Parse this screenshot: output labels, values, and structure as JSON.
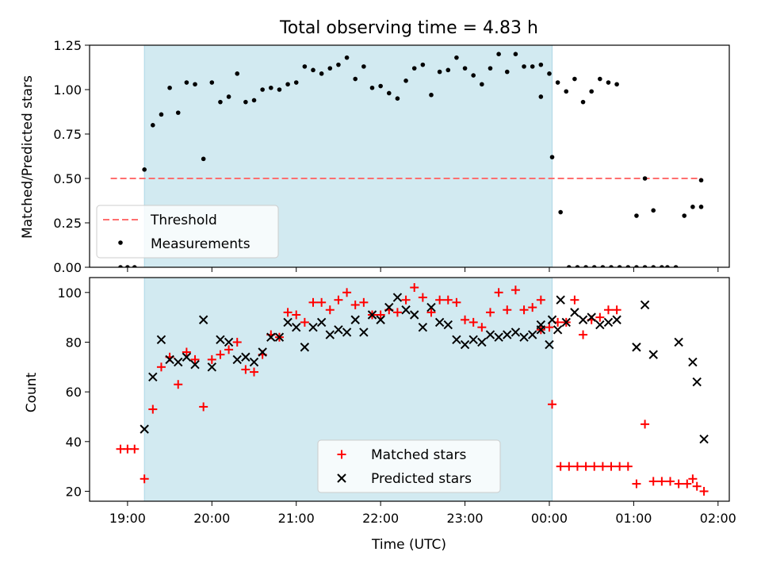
{
  "chart_data": [
    {
      "type": "scatter",
      "title": "Total observing time = 4.83 h",
      "xlabel": "",
      "ylabel": "Matched/Predicted stars",
      "ylim": [
        0,
        1.25
      ],
      "yticks": [
        "0.00",
        "0.25",
        "0.50",
        "0.75",
        "1.00",
        "1.25"
      ],
      "xlim": [
        "18:33",
        "02:08"
      ],
      "grid": false,
      "legend_position": "lower-left",
      "shaded_interval": {
        "start": "19:12",
        "end": "00:02",
        "color": "#add8e6"
      },
      "threshold": {
        "name": "Threshold",
        "value": 0.5,
        "x_start": "18:48",
        "x_end": "01:48",
        "color": "#ff6f6f",
        "style": "dashed"
      },
      "series": [
        {
          "name": "Measurements",
          "marker": "dot",
          "color": "#000000",
          "points": [
            [
              "18:55",
              0.0
            ],
            [
              "19:00",
              0.0
            ],
            [
              "19:05",
              0.0
            ],
            [
              "19:12",
              0.55
            ],
            [
              "19:18",
              0.8
            ],
            [
              "19:24",
              0.86
            ],
            [
              "19:30",
              1.01
            ],
            [
              "19:36",
              0.87
            ],
            [
              "19:42",
              1.04
            ],
            [
              "19:48",
              1.03
            ],
            [
              "19:54",
              0.61
            ],
            [
              "20:00",
              1.04
            ],
            [
              "20:06",
              0.93
            ],
            [
              "20:12",
              0.96
            ],
            [
              "20:18",
              1.09
            ],
            [
              "20:24",
              0.93
            ],
            [
              "20:30",
              0.94
            ],
            [
              "20:36",
              1.0
            ],
            [
              "20:42",
              1.01
            ],
            [
              "20:48",
              1.0
            ],
            [
              "20:54",
              1.03
            ],
            [
              "21:00",
              1.04
            ],
            [
              "21:06",
              1.13
            ],
            [
              "21:12",
              1.11
            ],
            [
              "21:18",
              1.09
            ],
            [
              "21:24",
              1.12
            ],
            [
              "21:30",
              1.14
            ],
            [
              "21:36",
              1.18
            ],
            [
              "21:42",
              1.06
            ],
            [
              "21:48",
              1.13
            ],
            [
              "21:54",
              1.01
            ],
            [
              "22:00",
              1.02
            ],
            [
              "22:06",
              0.98
            ],
            [
              "22:12",
              0.95
            ],
            [
              "22:18",
              1.05
            ],
            [
              "22:24",
              1.12
            ],
            [
              "22:30",
              1.14
            ],
            [
              "22:36",
              0.97
            ],
            [
              "22:42",
              1.1
            ],
            [
              "22:48",
              1.11
            ],
            [
              "22:54",
              1.18
            ],
            [
              "23:00",
              1.12
            ],
            [
              "23:06",
              1.08
            ],
            [
              "23:12",
              1.03
            ],
            [
              "23:18",
              1.12
            ],
            [
              "23:24",
              1.2
            ],
            [
              "23:30",
              1.1
            ],
            [
              "23:36",
              1.2
            ],
            [
              "23:42",
              1.13
            ],
            [
              "23:48",
              1.13
            ],
            [
              "23:54",
              1.14
            ],
            [
              "00:00",
              1.09
            ],
            [
              "00:06",
              1.04
            ],
            [
              "00:12",
              0.99
            ],
            [
              "00:18",
              1.06
            ],
            [
              "00:24",
              0.93
            ],
            [
              "00:30",
              0.99
            ],
            [
              "00:36",
              1.06
            ],
            [
              "00:42",
              1.04
            ],
            [
              "00:48",
              1.03
            ],
            [
              "23:54",
              0.96
            ],
            [
              "00:02",
              0.62
            ],
            [
              "00:08",
              0.31
            ],
            [
              "00:14",
              0.0
            ],
            [
              "00:20",
              0.0
            ],
            [
              "00:26",
              0.0
            ],
            [
              "00:32",
              0.0
            ],
            [
              "00:38",
              0.0
            ],
            [
              "00:44",
              0.0
            ],
            [
              "00:50",
              0.0
            ],
            [
              "00:56",
              0.0
            ],
            [
              "01:02",
              0.0
            ],
            [
              "01:08",
              0.0
            ],
            [
              "01:14",
              0.0
            ],
            [
              "01:20",
              0.0
            ],
            [
              "01:02",
              0.29
            ],
            [
              "01:08",
              0.5
            ],
            [
              "01:14",
              0.32
            ],
            [
              "01:24",
              0.0
            ],
            [
              "01:30",
              0.0
            ],
            [
              "01:36",
              0.29
            ],
            [
              "01:42",
              0.34
            ],
            [
              "01:48",
              0.34
            ],
            [
              "01:48",
              0.49
            ]
          ]
        }
      ]
    },
    {
      "type": "scatter",
      "title": "",
      "xlabel": "Time (UTC)",
      "ylabel": "Count",
      "ylim": [
        16,
        106
      ],
      "yticks": [
        "20",
        "40",
        "60",
        "80",
        "100"
      ],
      "xlim": [
        "18:33",
        "02:08"
      ],
      "xticks": [
        "19:00",
        "20:00",
        "21:00",
        "22:00",
        "23:00",
        "00:00",
        "01:00",
        "02:00"
      ],
      "grid": false,
      "legend_position": "lower-center",
      "shaded_interval": {
        "start": "19:12",
        "end": "00:02",
        "color": "#add8e6"
      },
      "series": [
        {
          "name": "Matched stars",
          "marker": "plus",
          "color": "#ff0000",
          "points": [
            [
              "18:55",
              37
            ],
            [
              "19:00",
              37
            ],
            [
              "19:05",
              37
            ],
            [
              "19:12",
              25
            ],
            [
              "19:18",
              53
            ],
            [
              "19:24",
              70
            ],
            [
              "19:30",
              74
            ],
            [
              "19:36",
              63
            ],
            [
              "19:42",
              76
            ],
            [
              "19:48",
              73
            ],
            [
              "19:54",
              54
            ],
            [
              "20:00",
              73
            ],
            [
              "20:06",
              75
            ],
            [
              "20:12",
              77
            ],
            [
              "20:18",
              80
            ],
            [
              "20:24",
              69
            ],
            [
              "20:30",
              68
            ],
            [
              "20:36",
              75
            ],
            [
              "20:42",
              83
            ],
            [
              "20:48",
              82
            ],
            [
              "20:54",
              92
            ],
            [
              "21:00",
              91
            ],
            [
              "21:06",
              88
            ],
            [
              "21:12",
              96
            ],
            [
              "21:18",
              96
            ],
            [
              "21:24",
              93
            ],
            [
              "21:30",
              97
            ],
            [
              "21:36",
              100
            ],
            [
              "21:42",
              95
            ],
            [
              "21:48",
              96
            ],
            [
              "21:54",
              91
            ],
            [
              "22:00",
              91
            ],
            [
              "22:06",
              93
            ],
            [
              "22:12",
              92
            ],
            [
              "22:18",
              97
            ],
            [
              "22:24",
              102
            ],
            [
              "22:30",
              98
            ],
            [
              "22:36",
              92
            ],
            [
              "22:42",
              97
            ],
            [
              "22:48",
              97
            ],
            [
              "22:54",
              96
            ],
            [
              "23:00",
              89
            ],
            [
              "23:06",
              88
            ],
            [
              "23:12",
              86
            ],
            [
              "23:18",
              92
            ],
            [
              "23:24",
              100
            ],
            [
              "23:30",
              93
            ],
            [
              "23:36",
              101
            ],
            [
              "23:42",
              93
            ],
            [
              "23:48",
              94
            ],
            [
              "23:54",
              97
            ],
            [
              "00:00",
              86
            ],
            [
              "00:06",
              88
            ],
            [
              "00:12",
              88
            ],
            [
              "00:18",
              97
            ],
            [
              "00:24",
              83
            ],
            [
              "00:30",
              89
            ],
            [
              "00:36",
              90
            ],
            [
              "00:42",
              93
            ],
            [
              "00:48",
              93
            ],
            [
              "23:54",
              85
            ],
            [
              "00:02",
              55
            ],
            [
              "00:08",
              30
            ],
            [
              "00:14",
              30
            ],
            [
              "00:20",
              30
            ],
            [
              "00:26",
              30
            ],
            [
              "00:32",
              30
            ],
            [
              "00:38",
              30
            ],
            [
              "00:44",
              30
            ],
            [
              "00:50",
              30
            ],
            [
              "00:56",
              30
            ],
            [
              "01:02",
              23
            ],
            [
              "01:08",
              47
            ],
            [
              "01:14",
              24
            ],
            [
              "01:20",
              24
            ],
            [
              "01:26",
              24
            ],
            [
              "01:32",
              23
            ],
            [
              "01:38",
              23
            ],
            [
              "01:42",
              25
            ],
            [
              "01:45",
              22
            ],
            [
              "01:50",
              20
            ]
          ]
        },
        {
          "name": "Predicted stars",
          "marker": "x",
          "color": "#000000",
          "points": [
            [
              "19:12",
              45
            ],
            [
              "19:18",
              66
            ],
            [
              "19:24",
              81
            ],
            [
              "19:30",
              73
            ],
            [
              "19:36",
              72
            ],
            [
              "19:42",
              74
            ],
            [
              "19:48",
              71
            ],
            [
              "19:54",
              89
            ],
            [
              "20:00",
              70
            ],
            [
              "20:06",
              81
            ],
            [
              "20:12",
              80
            ],
            [
              "20:18",
              73
            ],
            [
              "20:24",
              74
            ],
            [
              "20:30",
              72
            ],
            [
              "20:36",
              76
            ],
            [
              "20:42",
              82
            ],
            [
              "20:48",
              82
            ],
            [
              "20:54",
              88
            ],
            [
              "21:00",
              86
            ],
            [
              "21:06",
              78
            ],
            [
              "21:12",
              86
            ],
            [
              "21:18",
              88
            ],
            [
              "21:24",
              83
            ],
            [
              "21:30",
              85
            ],
            [
              "21:36",
              84
            ],
            [
              "21:42",
              89
            ],
            [
              "21:48",
              84
            ],
            [
              "21:54",
              91
            ],
            [
              "22:00",
              89
            ],
            [
              "22:06",
              94
            ],
            [
              "22:12",
              98
            ],
            [
              "22:18",
              93
            ],
            [
              "22:24",
              91
            ],
            [
              "22:30",
              86
            ],
            [
              "22:36",
              94
            ],
            [
              "22:42",
              88
            ],
            [
              "22:48",
              87
            ],
            [
              "22:54",
              81
            ],
            [
              "23:00",
              79
            ],
            [
              "23:06",
              81
            ],
            [
              "23:12",
              80
            ],
            [
              "23:18",
              83
            ],
            [
              "23:24",
              82
            ],
            [
              "23:30",
              83
            ],
            [
              "23:36",
              84
            ],
            [
              "23:42",
              82
            ],
            [
              "23:48",
              83
            ],
            [
              "23:54",
              85
            ],
            [
              "00:00",
              79
            ],
            [
              "00:06",
              85
            ],
            [
              "00:12",
              88
            ],
            [
              "00:18",
              92
            ],
            [
              "00:24",
              89
            ],
            [
              "00:30",
              90
            ],
            [
              "00:36",
              87
            ],
            [
              "00:42",
              88
            ],
            [
              "00:48",
              89
            ],
            [
              "23:54",
              87
            ],
            [
              "00:02",
              89
            ],
            [
              "00:08",
              97
            ],
            [
              "01:02",
              78
            ],
            [
              "01:08",
              95
            ],
            [
              "01:14",
              75
            ],
            [
              "01:32",
              80
            ],
            [
              "01:42",
              72
            ],
            [
              "01:45",
              64
            ],
            [
              "01:50",
              41
            ]
          ]
        }
      ]
    }
  ]
}
